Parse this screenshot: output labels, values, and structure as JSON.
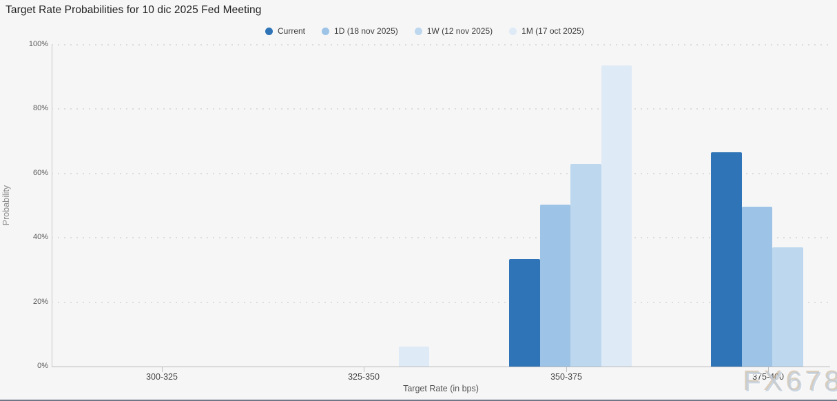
{
  "header": {
    "title": "Target Rate Probabilities for 10 dic 2025 Fed Meeting"
  },
  "watermark": "FX678",
  "chart_data": {
    "type": "bar",
    "title": "Target Rate Probabilities for 10 dic 2025 Fed Meeting",
    "xlabel": "Target Rate (in bps)",
    "ylabel": "Probability",
    "ylim": [
      0,
      100
    ],
    "y_tick_labels": [
      "0%",
      "20%",
      "40%",
      "60%",
      "80%",
      "100%"
    ],
    "grid": "dotted horizontal gridlines every 20%",
    "legend_position": "top-center",
    "categories": [
      "300-325",
      "325-350",
      "350-375",
      "375-400"
    ],
    "series": [
      {
        "name": "Current",
        "color": "#2e74b6",
        "values": [
          0,
          0,
          33.4,
          66.6
        ]
      },
      {
        "name": "1D (18 nov 2025)",
        "color": "#9dc3e6",
        "values": [
          0,
          0,
          50.3,
          49.7
        ]
      },
      {
        "name": "1W (12 nov 2025)",
        "color": "#bdd7ee",
        "values": [
          0,
          0,
          63.0,
          37.0
        ]
      },
      {
        "name": "1M (17 oct 2025)",
        "color": "#deeaf6",
        "values": [
          0,
          6.3,
          93.6,
          0
        ]
      }
    ]
  }
}
